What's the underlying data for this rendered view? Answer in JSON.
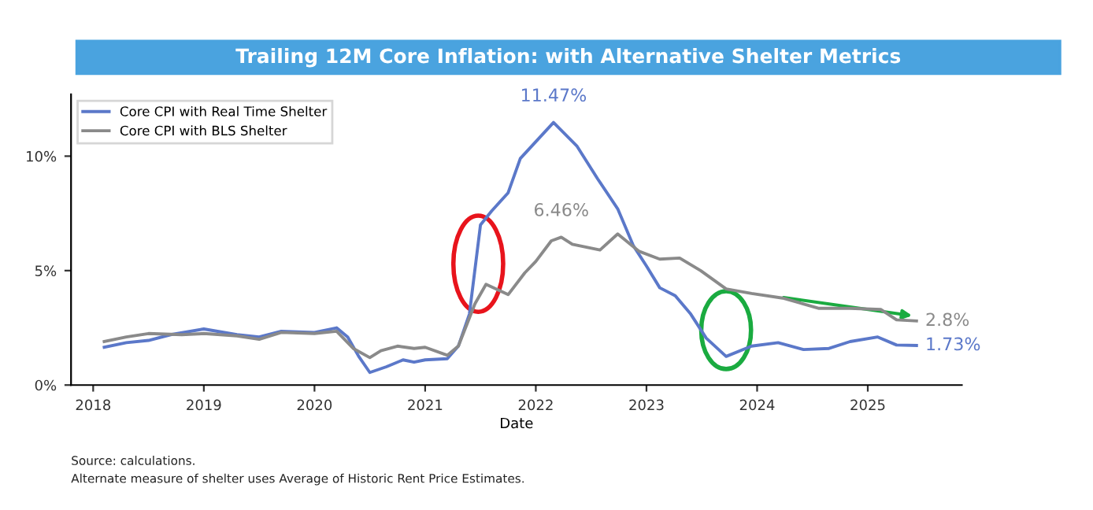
{
  "chart_data": {
    "type": "line",
    "title": "Trailing 12M Core Inflation: with Alternative Shelter Metrics",
    "xlabel": "Date",
    "xlim": [
      2017.8,
      2025.85
    ],
    "xticks": [
      2018,
      2019,
      2020,
      2021,
      2022,
      2023,
      2024,
      2025
    ],
    "ylim": [
      0,
      12.7
    ],
    "yticks": [
      {
        "value": 0,
        "label": "0%"
      },
      {
        "value": 5,
        "label": "5%"
      },
      {
        "value": 10,
        "label": "10%"
      }
    ],
    "grid": false,
    "legend": "top left",
    "marker": "none",
    "line_style": "solid",
    "series": [
      {
        "name": "Core CPI with Real Time Shelter",
        "color": "#5b78c9",
        "x": [
          2018.1,
          2018.3,
          2018.5,
          2018.7,
          2019.0,
          2019.3,
          2019.5,
          2019.7,
          2020.0,
          2020.2,
          2020.3,
          2020.4,
          2020.5,
          2020.65,
          2020.8,
          2020.9,
          2021.0,
          2021.2,
          2021.3,
          2021.4,
          2021.5,
          2021.6,
          2021.75,
          2021.86,
          2022.16,
          2022.37,
          2022.56,
          2022.74,
          2022.88,
          2023.0,
          2023.12,
          2023.26,
          2023.4,
          2023.54,
          2023.72,
          2023.95,
          2024.19,
          2024.42,
          2024.65,
          2024.84,
          2025.09,
          2025.26,
          2025.44
        ],
        "values": [
          1.65,
          1.85,
          1.95,
          2.2,
          2.45,
          2.2,
          2.1,
          2.35,
          2.3,
          2.5,
          2.1,
          1.25,
          0.55,
          0.8,
          1.1,
          1.0,
          1.1,
          1.15,
          1.7,
          3.1,
          7.0,
          7.6,
          8.4,
          9.9,
          11.47,
          10.45,
          9.0,
          7.7,
          6.1,
          5.2,
          4.25,
          3.9,
          3.1,
          2.05,
          1.25,
          1.7,
          1.85,
          1.55,
          1.6,
          1.9,
          2.1,
          1.75,
          1.73
        ]
      },
      {
        "name": "Core CPI with BLS Shelter",
        "color": "#8a8a8a",
        "x": [
          2018.1,
          2018.3,
          2018.5,
          2018.8,
          2019.0,
          2019.3,
          2019.5,
          2019.7,
          2020.0,
          2020.2,
          2020.35,
          2020.5,
          2020.6,
          2020.75,
          2020.9,
          2021.0,
          2021.2,
          2021.3,
          2021.45,
          2021.55,
          2021.75,
          2021.9,
          2022.0,
          2022.14,
          2022.23,
          2022.33,
          2022.58,
          2022.74,
          2022.93,
          2023.12,
          2023.3,
          2023.49,
          2023.72,
          2023.95,
          2024.23,
          2024.56,
          2024.84,
          2025.12,
          2025.26,
          2025.44
        ],
        "values": [
          1.9,
          2.1,
          2.25,
          2.2,
          2.25,
          2.15,
          2.0,
          2.3,
          2.25,
          2.35,
          1.6,
          1.2,
          1.5,
          1.7,
          1.6,
          1.65,
          1.3,
          1.7,
          3.55,
          4.4,
          3.95,
          4.9,
          5.4,
          6.3,
          6.46,
          6.15,
          5.9,
          6.6,
          5.85,
          5.5,
          5.55,
          5.0,
          4.2,
          4.0,
          3.8,
          3.35,
          3.35,
          3.3,
          2.85,
          2.8
        ]
      }
    ],
    "annotations": [
      {
        "text": "11.47%",
        "x": 2022.16,
        "y": 11.47
      },
      {
        "text": "6.46%",
        "x": 2022.23,
        "y": 6.46
      },
      {
        "text": "2.8%",
        "x": 2025.44,
        "y": 2.8
      },
      {
        "text": "1.73%",
        "x": 2025.44,
        "y": 1.73
      },
      "Source: calculations.",
      "Alternate measure of shelter uses Average of Historic Rent Price Estimates."
    ]
  }
}
